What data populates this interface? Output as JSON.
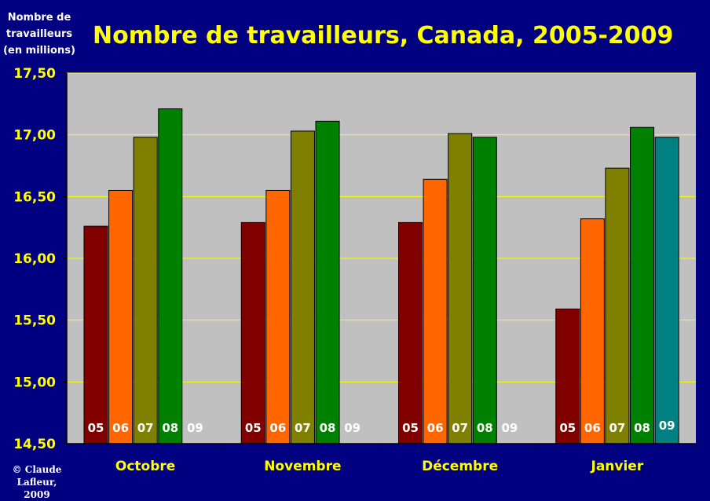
{
  "title": "Nombre de travailleurs, Canada, 2005-2009",
  "ylabel_lines": [
    "Nombre de",
    "travailleurs",
    "(en millions)"
  ],
  "credit_lines": [
    "© Claude",
    "Lafleur, 2009"
  ],
  "colors": {
    "background": "#000080",
    "plot_area": "#c0c0c0",
    "gridline": "#ffff00",
    "axis_text": "#ffff00",
    "bar_label_text": "#ffffff"
  },
  "chart_data": {
    "type": "bar",
    "title": "Nombre de travailleurs, Canada, 2005-2009",
    "ylabel": "Nombre de travailleurs (en millions)",
    "xlabel": "",
    "categories": [
      "Octobre",
      "Novembre",
      "Décembre",
      "Janvier"
    ],
    "ylim": [
      14.5,
      17.5
    ],
    "yticks": [
      14.5,
      15.0,
      15.5,
      16.0,
      16.5,
      17.0,
      17.5
    ],
    "ytick_labels": [
      "14,50",
      "15,00",
      "15,50",
      "16,00",
      "16,50",
      "17,00",
      "17,50"
    ],
    "grid": true,
    "legend": "none",
    "series": [
      {
        "label": "05",
        "color": "#800000",
        "values": [
          16.26,
          16.29,
          16.29,
          15.59
        ]
      },
      {
        "label": "06",
        "color": "#ff6600",
        "values": [
          16.55,
          16.55,
          16.64,
          16.32
        ]
      },
      {
        "label": "07",
        "color": "#808000",
        "values": [
          16.98,
          17.03,
          17.01,
          16.73
        ]
      },
      {
        "label": "08",
        "color": "#008000",
        "values": [
          17.21,
          17.11,
          16.98,
          17.06
        ]
      },
      {
        "label": "09",
        "color": "#008080",
        "values": [
          null,
          null,
          null,
          16.98
        ]
      }
    ]
  }
}
